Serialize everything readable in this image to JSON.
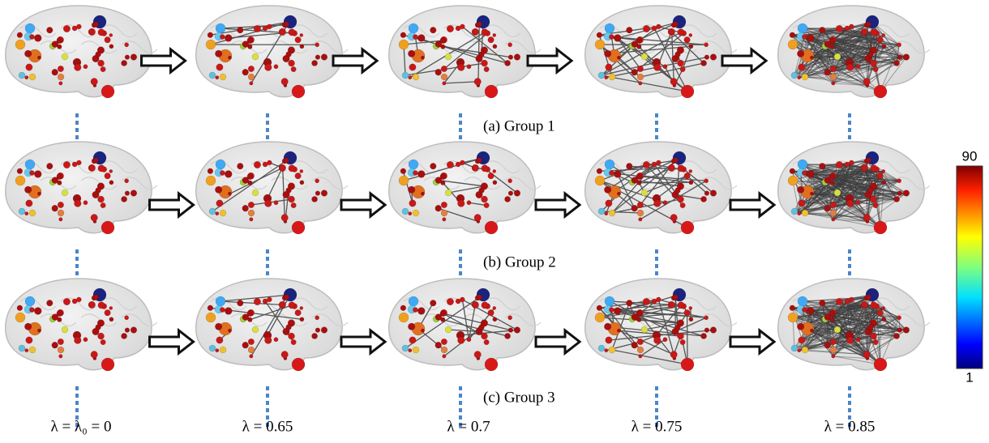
{
  "groups": [
    "(a) Group 1",
    "(b) Group 2",
    "(c) Group 3"
  ],
  "lambdas": [
    "λ = λ₀ = 0",
    "λ = 0.65",
    "λ = 0.7",
    "λ = 0.75",
    "λ = 0.85"
  ],
  "colorbar": {
    "top": "90",
    "bottom": "1"
  }
}
